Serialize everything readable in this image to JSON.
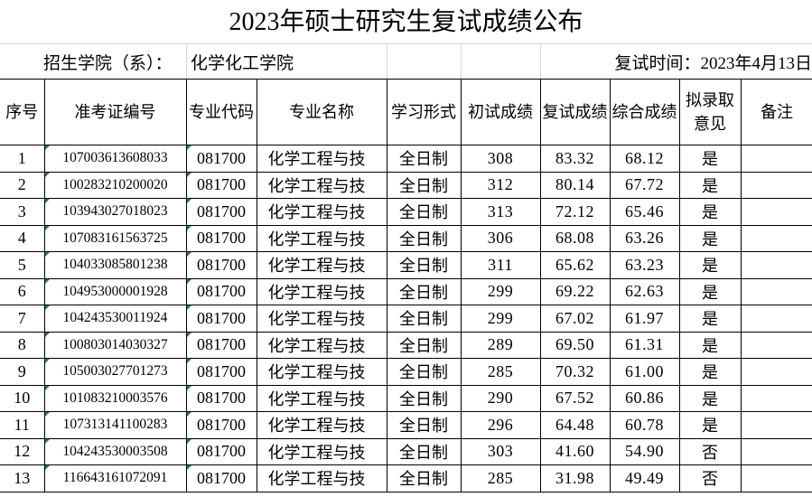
{
  "title": "2023年硕士研究生复试成绩公布",
  "info": {
    "college_label": "招生学院（系）：",
    "college_value": "化学化工学院",
    "date": "复试时间：2023年4月13日"
  },
  "columns": [
    "序号",
    "准考证编号",
    "专业代码",
    "专业名称",
    "学习形式",
    "初试成绩",
    "复试成绩",
    "综合成绩",
    "拟录取意见",
    "备注"
  ],
  "rows": [
    [
      "1",
      "107003613608033",
      "081700",
      "化学工程与技",
      "全日制",
      "308",
      "83.32",
      "68.12",
      "是",
      ""
    ],
    [
      "2",
      "100283210200020",
      "081700",
      "化学工程与技",
      "全日制",
      "312",
      "80.14",
      "67.72",
      "是",
      ""
    ],
    [
      "3",
      "103943027018023",
      "081700",
      "化学工程与技",
      "全日制",
      "313",
      "72.12",
      "65.46",
      "是",
      ""
    ],
    [
      "4",
      "107083161563725",
      "081700",
      "化学工程与技",
      "全日制",
      "306",
      "68.08",
      "63.26",
      "是",
      ""
    ],
    [
      "5",
      "104033085801238",
      "081700",
      "化学工程与技",
      "全日制",
      "311",
      "65.62",
      "63.23",
      "是",
      ""
    ],
    [
      "6",
      "104953000001928",
      "081700",
      "化学工程与技",
      "全日制",
      "299",
      "69.22",
      "62.63",
      "是",
      ""
    ],
    [
      "7",
      "104243530011924",
      "081700",
      "化学工程与技",
      "全日制",
      "299",
      "67.02",
      "61.97",
      "是",
      ""
    ],
    [
      "8",
      "100803014030327",
      "081700",
      "化学工程与技",
      "全日制",
      "289",
      "69.50",
      "61.31",
      "是",
      ""
    ],
    [
      "9",
      "105003027701273",
      "081700",
      "化学工程与技",
      "全日制",
      "285",
      "70.32",
      "61.00",
      "是",
      ""
    ],
    [
      "10",
      "101083210003576",
      "081700",
      "化学工程与技",
      "全日制",
      "290",
      "67.52",
      "60.86",
      "是",
      ""
    ],
    [
      "11",
      "107313141100283",
      "081700",
      "化学工程与技",
      "全日制",
      "296",
      "64.48",
      "60.78",
      "是",
      ""
    ],
    [
      "12",
      "104243530003508",
      "081700",
      "化学工程与技",
      "全日制",
      "303",
      "41.60",
      "54.90",
      "否",
      ""
    ],
    [
      "13",
      "116643161072091",
      "081700",
      "化学工程与技",
      "全日制",
      "285",
      "31.98",
      "49.49",
      "否",
      ""
    ]
  ],
  "colors": {
    "grid": "#000000",
    "light_grid": "#d4d9e2",
    "error_marker": "#1a8a2a"
  }
}
